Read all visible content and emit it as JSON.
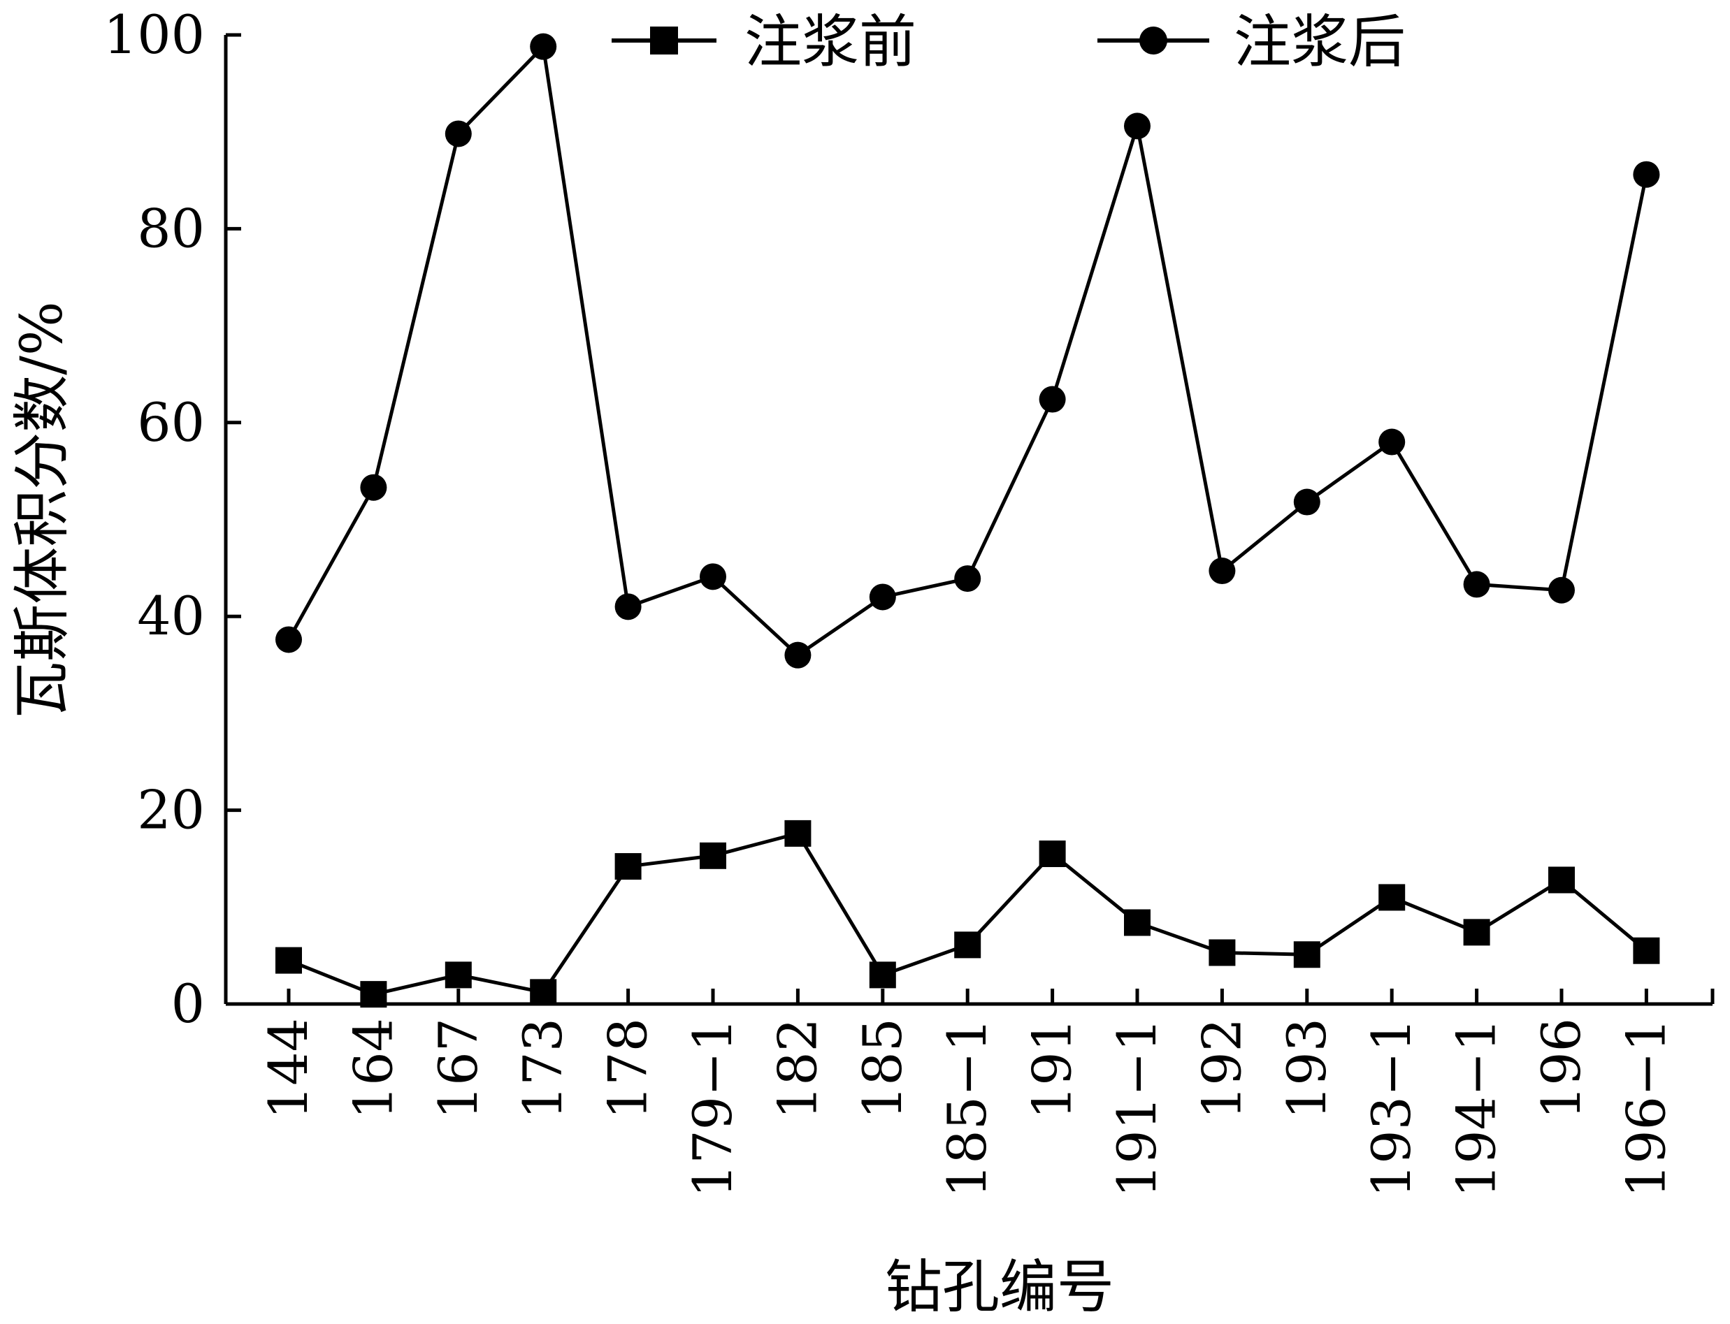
{
  "chart_data": {
    "type": "line",
    "title": "",
    "xlabel": "钻孔编号",
    "ylabel": "瓦斯体积分数/%",
    "ylim": [
      0,
      100
    ],
    "yticks": [
      "0",
      "20",
      "40",
      "60",
      "80",
      "100"
    ],
    "categories": [
      "144",
      "164",
      "167",
      "173",
      "178",
      "179−1",
      "182",
      "185",
      "185−1",
      "191",
      "191−1",
      "192",
      "193",
      "193−1",
      "194−1",
      "196",
      "196−1"
    ],
    "legend_position": "top",
    "series": [
      {
        "name": "注浆前",
        "marker": "square",
        "color": "#000000",
        "values": [
          4.5,
          1.0,
          3.0,
          1.2,
          14.2,
          15.3,
          17.6,
          3.0,
          6.1,
          15.5,
          8.4,
          5.3,
          5.1,
          11.0,
          7.4,
          12.8,
          5.5
        ]
      },
      {
        "name": "注浆后",
        "marker": "circle",
        "color": "#000000",
        "values": [
          37.6,
          53.3,
          89.8,
          98.8,
          41.0,
          44.1,
          36.0,
          42.0,
          43.9,
          62.4,
          90.6,
          44.7,
          51.8,
          58.0,
          43.3,
          42.7,
          85.6
        ]
      }
    ]
  }
}
